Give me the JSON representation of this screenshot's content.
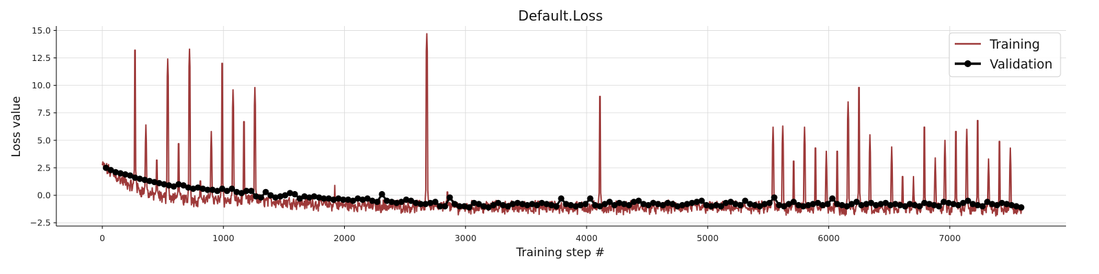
{
  "chart_data": {
    "type": "line",
    "title": "Default.Loss",
    "xlabel": "Training step #",
    "ylabel": "Loss value",
    "xlim": [
      -380,
      7960
    ],
    "ylim": [
      -2.8,
      15.4
    ],
    "xticks": [
      0,
      1000,
      2000,
      3000,
      4000,
      5000,
      6000,
      7000
    ],
    "yticks": [
      -2.5,
      0.0,
      2.5,
      5.0,
      7.5,
      10.0,
      12.5,
      15.0
    ],
    "ytick_labels": [
      "−2.5",
      "0.0",
      "2.5",
      "5.0",
      "7.5",
      "10.0",
      "12.5",
      "15.0"
    ],
    "grid": true,
    "legend_position": "top-right",
    "series": [
      {
        "name": "Training",
        "color": "#9e3a3a",
        "style": "line",
        "trend": [
          [
            0,
            2.7
          ],
          [
            100,
            1.8
          ],
          [
            200,
            1.1
          ],
          [
            300,
            0.5
          ],
          [
            400,
            0.1
          ],
          [
            500,
            -0.2
          ],
          [
            700,
            -0.4
          ],
          [
            1000,
            -0.5
          ],
          [
            1300,
            -0.45
          ],
          [
            1500,
            -0.6
          ],
          [
            2000,
            -0.9
          ],
          [
            2500,
            -1.0
          ],
          [
            3000,
            -1.1
          ],
          [
            4000,
            -1.1
          ],
          [
            5000,
            -1.1
          ],
          [
            6000,
            -1.2
          ],
          [
            7000,
            -1.2
          ],
          [
            7600,
            -1.3
          ]
        ],
        "spikes": [
          [
            270,
            14.0
          ],
          [
            360,
            6.4
          ],
          [
            450,
            4.0
          ],
          [
            540,
            12.4
          ],
          [
            630,
            5.5
          ],
          [
            720,
            13.3
          ],
          [
            810,
            2.1
          ],
          [
            900,
            5.8
          ],
          [
            990,
            12.8
          ],
          [
            1080,
            9.6
          ],
          [
            1170,
            7.5
          ],
          [
            1260,
            9.8
          ],
          [
            1920,
            0.9
          ],
          [
            2680,
            14.7
          ],
          [
            2850,
            1.1
          ],
          [
            4110,
            9.8
          ],
          [
            5540,
            6.2
          ],
          [
            5620,
            6.3
          ],
          [
            5710,
            3.9
          ],
          [
            5800,
            6.2
          ],
          [
            5890,
            5.1
          ],
          [
            5980,
            4.0
          ],
          [
            6070,
            4.8
          ],
          [
            6160,
            8.5
          ],
          [
            6250,
            10.6
          ],
          [
            6340,
            5.5
          ],
          [
            6520,
            4.4
          ],
          [
            6610,
            2.5
          ],
          [
            6700,
            1.7
          ],
          [
            6790,
            7.0
          ],
          [
            6880,
            3.4
          ],
          [
            6960,
            5.0
          ],
          [
            7050,
            6.6
          ],
          [
            7140,
            6.0
          ],
          [
            7230,
            7.6
          ],
          [
            7320,
            3.3
          ],
          [
            7410,
            5.7
          ],
          [
            7500,
            4.3
          ]
        ]
      },
      {
        "name": "Validation",
        "color": "#000000",
        "style": "line-marker",
        "x": [
          30,
          70,
          110,
          150,
          190,
          230,
          270,
          310,
          350,
          390,
          430,
          470,
          510,
          550,
          590,
          630,
          670,
          710,
          750,
          790,
          830,
          870,
          910,
          950,
          990,
          1030,
          1070,
          1110,
          1150,
          1190,
          1230,
          1270,
          1310,
          1350,
          1390,
          1430,
          1470,
          1510,
          1550,
          1590,
          1630,
          1670,
          1710,
          1750,
          1790,
          1830,
          1870,
          1910,
          1950,
          1990,
          2030,
          2070,
          2110,
          2150,
          2190,
          2230,
          2270,
          2310,
          2350,
          2390,
          2430,
          2470,
          2510,
          2550,
          2590,
          2630,
          2670,
          2710,
          2750,
          2790,
          2830,
          2870,
          2910,
          2950,
          2990,
          3030,
          3070,
          3110,
          3150,
          3190,
          3230,
          3270,
          3310,
          3350,
          3390,
          3430,
          3470,
          3510,
          3550,
          3590,
          3630,
          3670,
          3710,
          3750,
          3790,
          3830,
          3870,
          3910,
          3950,
          3990,
          4030,
          4070,
          4110,
          4150,
          4190,
          4230,
          4270,
          4310,
          4350,
          4390,
          4430,
          4470,
          4510,
          4550,
          4590,
          4630,
          4670,
          4710,
          4750,
          4790,
          4830,
          4870,
          4910,
          4950,
          4990,
          5030,
          5070,
          5110,
          5150,
          5190,
          5230,
          5270,
          5310,
          5350,
          5390,
          5430,
          5470,
          5510,
          5550,
          5590,
          5630,
          5670,
          5710,
          5750,
          5790,
          5830,
          5870,
          5910,
          5950,
          5990,
          6030,
          6070,
          6110,
          6150,
          6190,
          6230,
          6270,
          6310,
          6350,
          6390,
          6430,
          6470,
          6510,
          6550,
          6590,
          6630,
          6670,
          6710,
          6750,
          6790,
          6830,
          6870,
          6910,
          6950,
          6990,
          7030,
          7070,
          7110,
          7150,
          7190,
          7230,
          7270,
          7310,
          7350,
          7390,
          7430,
          7470,
          7510,
          7550,
          7590
        ],
        "y": [
          2.5,
          2.3,
          2.1,
          2.0,
          1.9,
          1.8,
          1.6,
          1.5,
          1.4,
          1.3,
          1.2,
          1.1,
          1.0,
          0.9,
          0.8,
          1.0,
          0.9,
          0.7,
          0.6,
          0.7,
          0.6,
          0.5,
          0.5,
          0.4,
          0.6,
          0.4,
          0.6,
          0.3,
          0.2,
          0.4,
          0.4,
          -0.1,
          -0.2,
          0.3,
          0.0,
          -0.2,
          -0.1,
          0.0,
          0.2,
          0.1,
          -0.3,
          -0.1,
          -0.2,
          -0.1,
          -0.2,
          -0.3,
          -0.3,
          -0.4,
          -0.3,
          -0.4,
          -0.4,
          -0.5,
          -0.3,
          -0.4,
          -0.3,
          -0.5,
          -0.6,
          0.1,
          -0.5,
          -0.6,
          -0.7,
          -0.6,
          -0.4,
          -0.5,
          -0.7,
          -0.8,
          -0.8,
          -0.7,
          -0.6,
          -1.0,
          -1.0,
          -0.2,
          -0.8,
          -1.0,
          -1.0,
          -1.1,
          -0.7,
          -0.8,
          -1.0,
          -1.1,
          -0.9,
          -0.7,
          -0.9,
          -1.0,
          -0.8,
          -0.7,
          -0.8,
          -0.9,
          -0.8,
          -0.9,
          -0.7,
          -0.8,
          -0.9,
          -1.0,
          -0.3,
          -0.8,
          -0.9,
          -1.0,
          -0.9,
          -0.8,
          -0.3,
          -0.9,
          -1.0,
          -0.8,
          -0.6,
          -0.9,
          -0.7,
          -0.8,
          -0.9,
          -0.6,
          -0.5,
          -0.8,
          -0.9,
          -0.7,
          -0.8,
          -0.9,
          -0.7,
          -0.8,
          -1.0,
          -0.9,
          -0.8,
          -0.7,
          -0.6,
          -0.5,
          -0.9,
          -1.0,
          -0.9,
          -1.0,
          -0.7,
          -0.6,
          -0.8,
          -0.9,
          -0.5,
          -0.8,
          -0.9,
          -1.0,
          -0.8,
          -0.7,
          -0.2,
          -0.9,
          -1.0,
          -0.8,
          -0.6,
          -0.9,
          -1.0,
          -0.9,
          -0.8,
          -0.7,
          -0.9,
          -0.8,
          -0.3,
          -0.8,
          -0.9,
          -1.0,
          -0.8,
          -0.6,
          -0.9,
          -0.8,
          -0.7,
          -0.9,
          -0.8,
          -0.7,
          -0.9,
          -0.8,
          -0.9,
          -1.0,
          -0.8,
          -0.9,
          -1.0,
          -0.7,
          -0.8,
          -0.9,
          -1.0,
          -0.6,
          -0.7,
          -0.8,
          -0.9,
          -0.7,
          -0.5,
          -0.8,
          -0.9,
          -1.0,
          -0.6,
          -0.8,
          -0.9,
          -0.7,
          -0.8,
          -0.9,
          -1.0,
          -1.1
        ]
      }
    ]
  }
}
